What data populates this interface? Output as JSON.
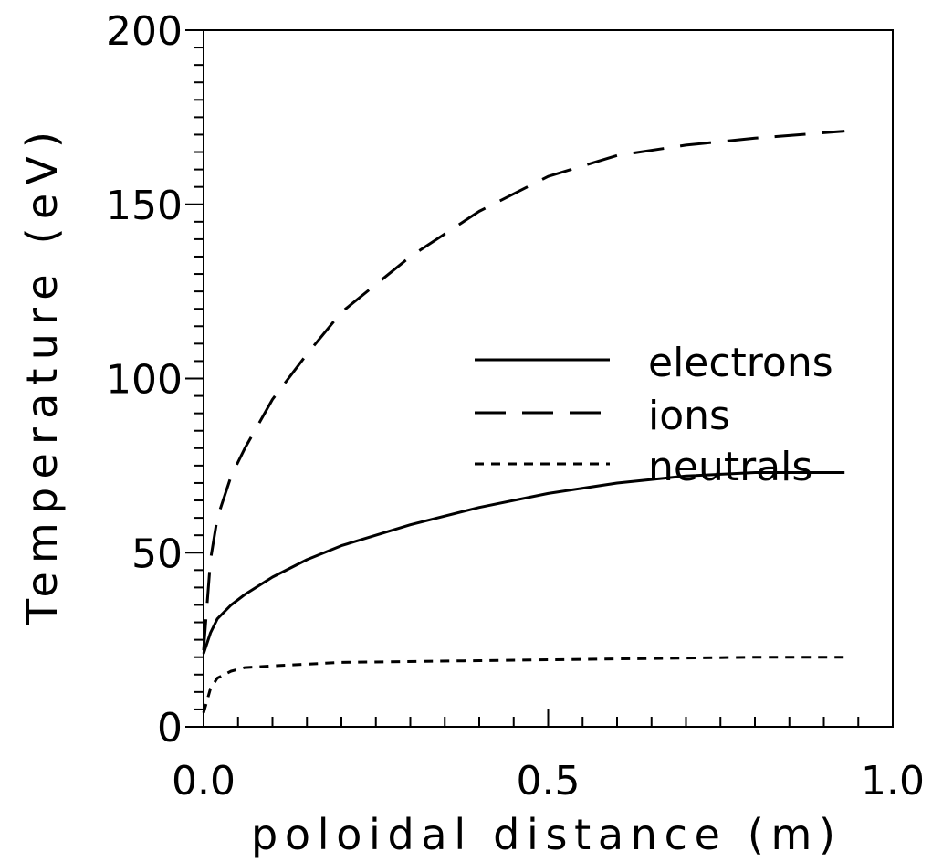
{
  "chart_data": {
    "type": "line",
    "title": "",
    "xlabel": "poloidal distance (m)",
    "ylabel": "Temperature (eV)",
    "xlim": [
      0.0,
      1.0
    ],
    "ylim": [
      0,
      200
    ],
    "x_ticks": [
      0.0,
      0.5,
      1.0
    ],
    "x_tick_labels": [
      "0.0",
      "0.5",
      "1.0"
    ],
    "y_ticks": [
      0,
      50,
      100,
      150,
      200
    ],
    "y_tick_labels": [
      "0",
      "50",
      "100",
      "150",
      "200"
    ],
    "grid": false,
    "legend_position": "middle-right",
    "series": [
      {
        "name": "electrons",
        "style": "solid",
        "x": [
          0.0,
          0.01,
          0.02,
          0.04,
          0.06,
          0.1,
          0.15,
          0.2,
          0.3,
          0.4,
          0.5,
          0.6,
          0.7,
          0.8,
          0.93
        ],
        "y": [
          21,
          27,
          31,
          35,
          38,
          43,
          48,
          52,
          58,
          63,
          67,
          70,
          72,
          73,
          73
        ]
      },
      {
        "name": "ions",
        "style": "dashed",
        "x": [
          0.0,
          0.005,
          0.01,
          0.02,
          0.04,
          0.06,
          0.1,
          0.15,
          0.2,
          0.3,
          0.4,
          0.5,
          0.6,
          0.7,
          0.8,
          0.93
        ],
        "y": [
          22,
          35,
          48,
          60,
          72,
          80,
          94,
          107,
          119,
          135,
          148,
          158,
          164,
          167,
          169,
          171
        ]
      },
      {
        "name": "neutrals",
        "style": "dotted",
        "x": [
          0.0,
          0.01,
          0.02,
          0.04,
          0.06,
          0.1,
          0.2,
          0.4,
          0.6,
          0.8,
          0.93
        ],
        "y": [
          4,
          11,
          14,
          16,
          17,
          17.5,
          18.5,
          19,
          19.5,
          20,
          20
        ]
      }
    ]
  }
}
